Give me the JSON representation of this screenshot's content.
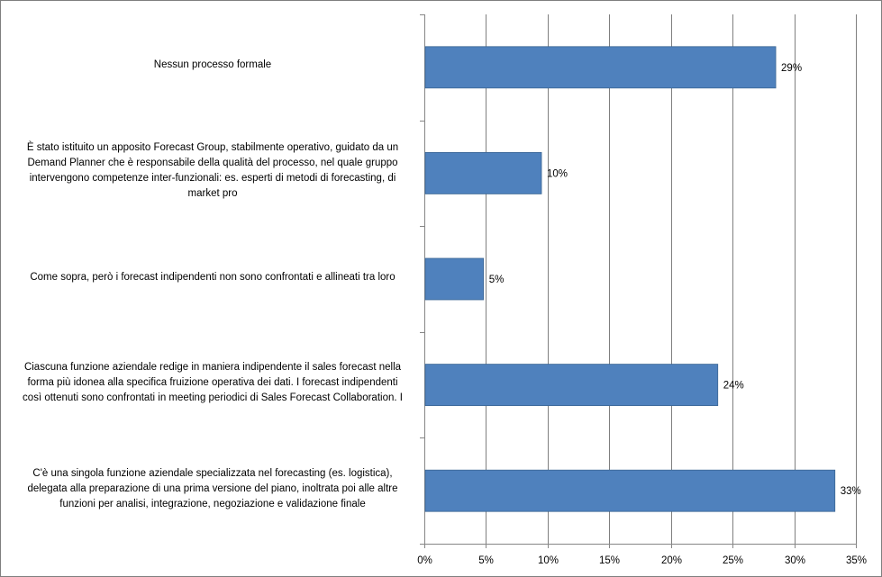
{
  "chart_data": {
    "type": "bar",
    "orientation": "horizontal",
    "categories": [
      "Nessun processo formale",
      "È stato istituito un apposito Forecast Group, stabilmente operativo, guidato da un Demand Planner che è responsabile della qualità del processo, nel quale gruppo intervengono competenze inter-funzionali: es. esperti di metodi di forecasting, di market pro",
      "Come sopra, però i forecast indipendenti non sono confrontati e allineati  tra loro",
      "Ciascuna funzione aziendale redige in maniera indipendente il sales forecast nella forma più idonea alla specifica fruizione operativa dei dati. I forecast indipendenti così ottenuti sono confrontati in meeting periodici di Sales Forecast Collaboration.  I",
      "C'è una singola funzione aziendale specializzata  nel forecasting (es. logistica), delegata alla preparazione di una prima versione del piano, inoltrata poi alle altre funzioni per analisi, integrazione, negoziazione e validazione finale"
    ],
    "category_lines": [
      [
        "Nessun processo formale"
      ],
      [
        "È stato istituito  un apposito Forecast Group, stabilmente operativo, guidato da un",
        "Demand Planner che è responsabile della qualità del processo, nel quale gruppo",
        "intervengono competenze inter-funzionali: es. esperti di metodi di forecasting, di",
        "market pro"
      ],
      [
        "Come sopra, però i forecast indipendenti non sono confrontati e allineati  tra loro"
      ],
      [
        "Ciascuna funzione aziendale redige in maniera indipendente il sales forecast nella",
        "forma più idonea alla specifica fruizione operativa dei dati. I forecast indipendenti",
        "così ottenuti sono confrontati in meeting periodici di Sales Forecast Collaboration.  I"
      ],
      [
        "C'è una singola funzione aziendale specializzata  nel forecasting (es. logistica),",
        "delegata alla preparazione di una prima versione del piano, inoltrata poi alle altre",
        "funzioni per analisi, integrazione, negoziazione e validazione finale"
      ]
    ],
    "values": [
      28.5,
      9.5,
      4.8,
      23.8,
      33.3
    ],
    "data_labels": [
      "29%",
      "10%",
      "5%",
      "24%",
      "33%"
    ],
    "x_ticks": [
      "0%",
      "5%",
      "10%",
      "15%",
      "20%",
      "25%",
      "30%",
      "35%"
    ],
    "xlim": [
      0,
      35
    ],
    "grid": "vertical",
    "bar_color": "#4f81bd",
    "bar_edge_color": "#3a6593",
    "grid_color": "#7f7f7f",
    "title": "",
    "xlabel": "",
    "ylabel": ""
  }
}
